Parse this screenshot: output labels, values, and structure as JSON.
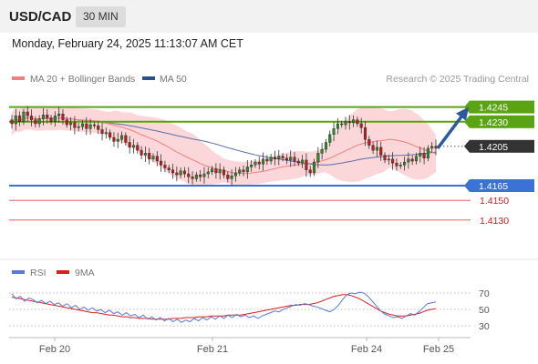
{
  "header": {
    "symbol": "USD/CAD",
    "timeframe": "30 MIN"
  },
  "timestamp": "Monday, February 24, 2025 11:13:07 AM CET",
  "legend": {
    "ma20_bb": "MA 20 + Bollinger Bands",
    "ma50": "MA 50",
    "rsi": "RSI",
    "ma9": "9MA"
  },
  "attribution": "Research © 2025 Trading Central",
  "colors": {
    "resistance": "#5aa312",
    "support": "#3a72d8",
    "support_thin": "#e24a4a",
    "candle_up": "#2f8a2a",
    "candle_down": "#b81f1f",
    "bollinger_fill": "#fbd0d4",
    "ma20": "#ef7f7f",
    "ma50": "#5a6fa8",
    "rsi": "#5b78d6",
    "rsi_ma": "#d62020",
    "arrow": "#2c5a9c",
    "current_price_label": "#333333"
  },
  "chart_data": [
    {
      "type": "candlestick",
      "instrument": "USD/CAD",
      "interval": "30 MIN",
      "x_ticks": [
        "Feb 20",
        "Feb 21",
        "Feb 24",
        "Feb 25"
      ],
      "ylim": [
        1.4115,
        1.4265
      ],
      "series": [
        {
          "name": "MA 20 + Bollinger Bands",
          "kind": "ma+bands",
          "period": 20
        },
        {
          "name": "MA 50",
          "kind": "ma",
          "period": 50
        }
      ],
      "levels": [
        {
          "label": "1.4245",
          "value": 1.4245,
          "role": "resistance"
        },
        {
          "label": "1.4230",
          "value": 1.423,
          "role": "resistance"
        },
        {
          "label": "1.4205",
          "value": 1.4205,
          "role": "current"
        },
        {
          "label": "1.4165",
          "value": 1.4165,
          "role": "support"
        },
        {
          "label": "1.4150",
          "value": 1.415,
          "role": "support_thin"
        },
        {
          "label": "1.4130",
          "value": 1.413,
          "role": "support_thin"
        }
      ],
      "projection": {
        "from": 1.4203,
        "to": 1.4245
      },
      "closes": [
        1.4228,
        1.4236,
        1.423,
        1.424,
        1.4236,
        1.4232,
        1.4228,
        1.4233,
        1.4237,
        1.4234,
        1.423,
        1.4236,
        1.4238,
        1.4232,
        1.4227,
        1.4229,
        1.4224,
        1.4225,
        1.4228,
        1.4223,
        1.4227,
        1.4226,
        1.4222,
        1.4218,
        1.4219,
        1.4214,
        1.421,
        1.4212,
        1.4216,
        1.4209,
        1.4204,
        1.4206,
        1.4201,
        1.4196,
        1.4198,
        1.4192,
        1.4195,
        1.419,
        1.4186,
        1.4183,
        1.4181,
        1.4178,
        1.4176,
        1.418,
        1.4177,
        1.4174,
        1.4172,
        1.4176,
        1.4174,
        1.4177,
        1.4179,
        1.4182,
        1.4178,
        1.4181,
        1.4176,
        1.4172,
        1.4175,
        1.4178,
        1.4181,
        1.4179,
        1.4184,
        1.4186,
        1.4189,
        1.4187,
        1.4192,
        1.419,
        1.4194,
        1.4192,
        1.4195,
        1.4193,
        1.4191,
        1.4194,
        1.419,
        1.4188,
        1.4191,
        1.4181,
        1.4178,
        1.4189,
        1.4198,
        1.4202,
        1.4209,
        1.4217,
        1.4223,
        1.4228,
        1.4227,
        1.423,
        1.4229,
        1.4232,
        1.4228,
        1.4224,
        1.4212,
        1.4206,
        1.4201,
        1.4204,
        1.4196,
        1.4191,
        1.4192,
        1.4188,
        1.4185,
        1.4186,
        1.4189,
        1.4192,
        1.419,
        1.4195,
        1.4198,
        1.4193,
        1.4203,
        1.4205,
        1.4203
      ]
    },
    {
      "type": "line",
      "title": "RSI",
      "y_ticks": [
        70,
        50,
        30
      ],
      "ylim": [
        20,
        80
      ],
      "series": [
        {
          "name": "RSI",
          "values": [
            69,
            63,
            66,
            60,
            64,
            62,
            58,
            61,
            57,
            60,
            56,
            58,
            54,
            57,
            52,
            55,
            50,
            53,
            49,
            52,
            48,
            50,
            46,
            49,
            45,
            47,
            43,
            46,
            42,
            44,
            40,
            43,
            38,
            41,
            37,
            40,
            36,
            39,
            35,
            38,
            34,
            37,
            35,
            39,
            36,
            40,
            37,
            41,
            38,
            42,
            39,
            43,
            40,
            44,
            41,
            43,
            40,
            42,
            39,
            42,
            44,
            46,
            48,
            47,
            50,
            52,
            54,
            56,
            55,
            57,
            56,
            54,
            53,
            51,
            49,
            47,
            50,
            55,
            62,
            68,
            70,
            69,
            71,
            70,
            66,
            60,
            54,
            48,
            44,
            42,
            40,
            41,
            39,
            42,
            45,
            43,
            47,
            52,
            57,
            58,
            59
          ]
        },
        {
          "name": "9MA",
          "values": [
            65,
            64,
            63,
            62,
            61,
            60,
            59,
            58,
            57,
            56,
            55,
            54,
            53,
            52,
            51,
            50,
            49,
            48,
            47,
            46,
            46,
            45,
            44,
            43,
            43,
            42,
            41,
            41,
            40,
            40,
            39,
            39,
            39,
            38,
            38,
            38,
            38,
            38,
            39,
            39,
            39,
            40,
            40,
            40,
            41,
            41,
            41,
            42,
            42,
            42,
            42,
            43,
            43,
            43,
            43,
            44,
            45,
            46,
            47,
            48,
            49,
            50,
            51,
            52,
            53,
            54,
            55,
            55,
            56,
            56,
            56,
            57,
            58,
            60,
            62,
            64,
            66,
            67,
            68,
            68,
            67,
            65,
            63,
            60,
            57,
            54,
            51,
            48,
            46,
            44,
            43,
            42,
            42,
            42,
            43,
            44,
            45,
            47,
            49,
            50,
            51
          ]
        }
      ]
    }
  ]
}
